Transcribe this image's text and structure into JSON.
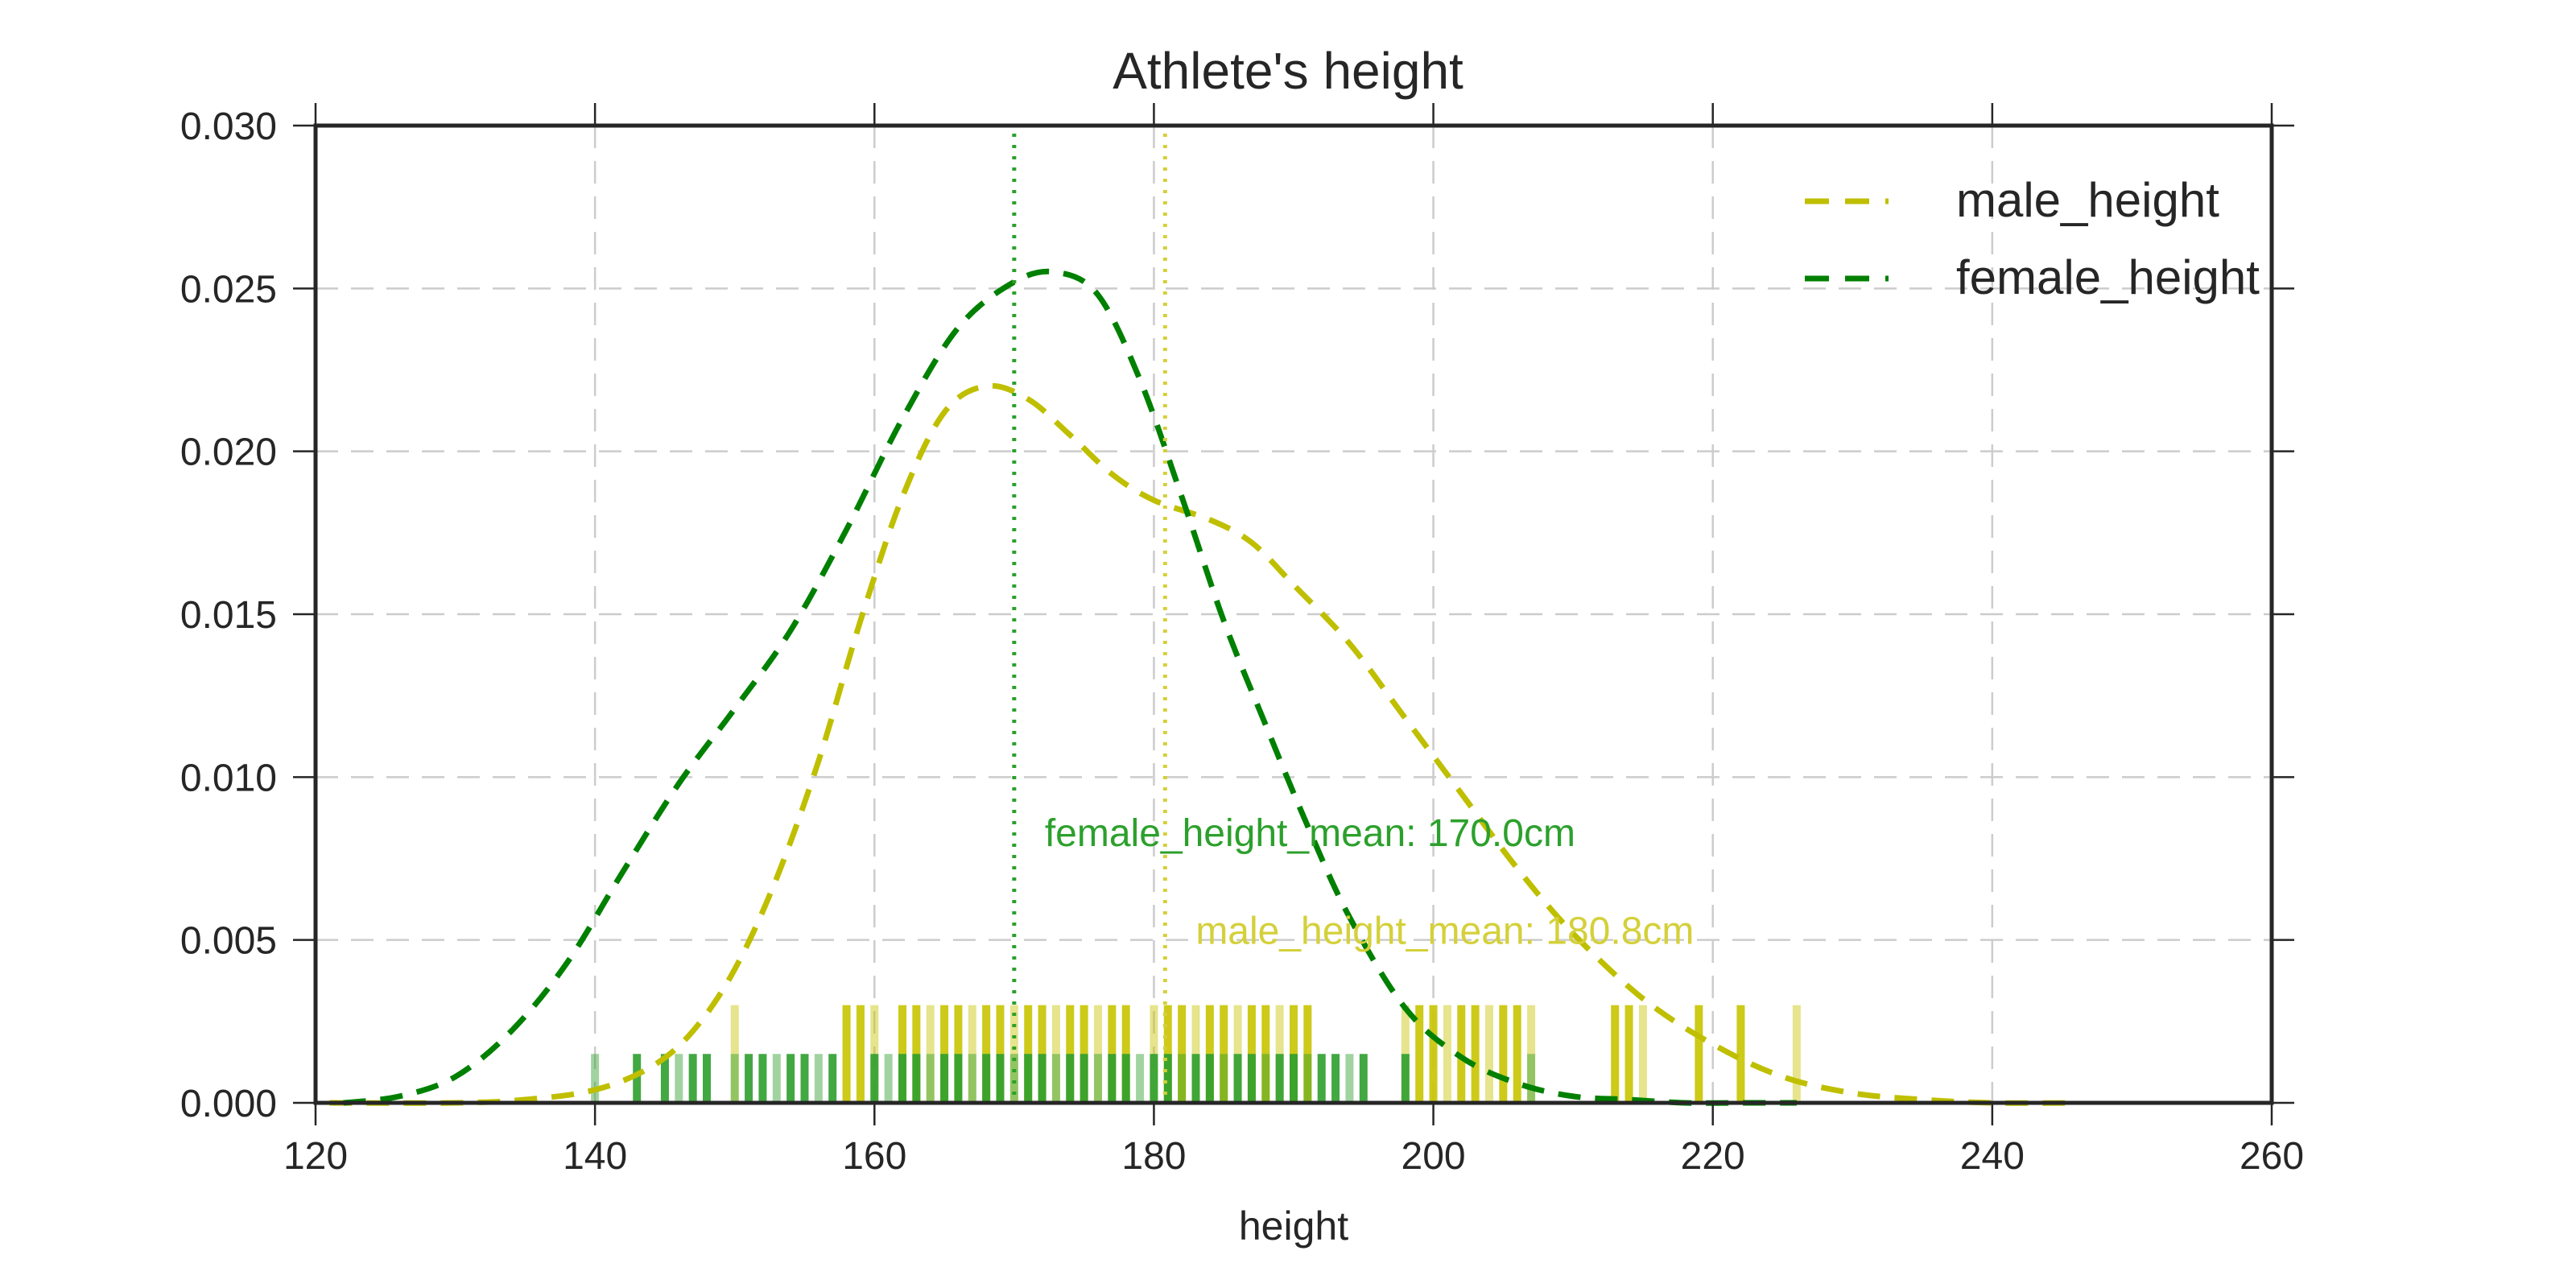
{
  "chart_data": {
    "type": "line",
    "title": "Athlete's height",
    "xlabel": "height",
    "ylabel": "",
    "xlim": [
      120,
      260
    ],
    "ylim": [
      0,
      0.03
    ],
    "xticks": [
      120,
      140,
      160,
      180,
      200,
      220,
      240,
      260
    ],
    "xtick_labels": [
      "120",
      "140",
      "160",
      "180",
      "200",
      "220",
      "240",
      "260"
    ],
    "yticks": [
      0,
      0.005,
      0.01,
      0.015,
      0.02,
      0.025,
      0.03
    ],
    "ytick_labels": [
      "0.000",
      "0.005",
      "0.010",
      "0.015",
      "0.020",
      "0.025",
      "0.030"
    ],
    "grid": true,
    "legend_position": "top-right",
    "series": [
      {
        "name": "male_height",
        "color": "#bfbf00",
        "style": "dashed",
        "x": [
          121,
          130,
          135,
          140,
          144,
          147,
          150,
          153,
          156,
          159,
          162,
          165,
          168,
          171,
          174,
          177,
          180,
          184,
          187,
          190,
          194,
          198,
          202,
          206,
          210,
          215,
          220,
          225,
          230,
          235,
          240,
          246
        ],
        "y": [
          0.0,
          0.0,
          0.0001,
          0.0004,
          0.0011,
          0.0022,
          0.0041,
          0.0069,
          0.0105,
          0.0148,
          0.0186,
          0.0212,
          0.022,
          0.0216,
          0.0205,
          0.0193,
          0.0185,
          0.0179,
          0.0172,
          0.0159,
          0.0141,
          0.0118,
          0.0095,
          0.0072,
          0.0052,
          0.0032,
          0.0018,
          0.0008,
          0.0003,
          0.0001,
          0.0,
          0.0
        ]
      },
      {
        "name": "female_height",
        "color": "#008000",
        "style": "dashed",
        "x": [
          122,
          126,
          130,
          134,
          138,
          142,
          146,
          150,
          154,
          158,
          162,
          166,
          170,
          173,
          176,
          179,
          182,
          185,
          188,
          191,
          194,
          198,
          202,
          206,
          210,
          214,
          218,
          222,
          226
        ],
        "y": [
          0.0,
          0.0002,
          0.0008,
          0.0022,
          0.0043,
          0.0071,
          0.0098,
          0.0121,
          0.0145,
          0.0176,
          0.021,
          0.0238,
          0.0252,
          0.0255,
          0.0248,
          0.0222,
          0.0186,
          0.0148,
          0.0116,
          0.0085,
          0.0057,
          0.0029,
          0.0014,
          0.0006,
          0.0002,
          0.0001,
          0.0,
          0.0,
          0.0
        ]
      }
    ],
    "mean_lines": [
      {
        "series": "female_height",
        "x": 170.0,
        "color": "#2ca02c",
        "label": "female_height_mean: 170.0cm",
        "label_y": 0.0083
      },
      {
        "series": "male_height",
        "x": 180.8,
        "color": "#d4d03a",
        "label": "male_height_mean: 180.8cm",
        "label_y": 0.0053
      }
    ],
    "rug": [
      {
        "series": "male_height",
        "color": "#c8c400",
        "height": 0.003,
        "values": [
          150,
          158,
          159,
          160,
          162,
          163,
          164,
          165,
          166,
          167,
          168,
          169,
          170,
          171,
          172,
          173,
          174,
          175,
          176,
          177,
          178,
          180,
          181,
          182,
          183,
          184,
          185,
          186,
          187,
          188,
          189,
          190,
          191,
          198,
          199,
          200,
          201,
          202,
          203,
          204,
          205,
          206,
          207,
          213,
          214,
          215,
          219,
          222,
          226
        ]
      },
      {
        "series": "female_height",
        "color": "#2e9e2e",
        "height": 0.0015,
        "values": [
          140,
          143,
          145,
          146,
          147,
          148,
          150,
          151,
          152,
          153,
          154,
          155,
          156,
          157,
          160,
          161,
          162,
          163,
          164,
          165,
          166,
          167,
          168,
          169,
          170,
          171,
          172,
          173,
          174,
          175,
          176,
          177,
          178,
          179,
          180,
          181,
          182,
          183,
          184,
          185,
          186,
          187,
          188,
          189,
          190,
          191,
          192,
          193,
          194,
          195,
          198,
          207
        ]
      }
    ]
  }
}
